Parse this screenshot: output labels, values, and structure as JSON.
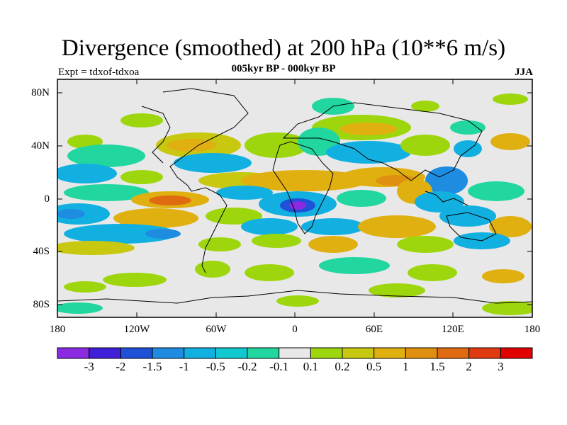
{
  "title": "Divergence (smoothed) at 200 hPa (10**6 m/s)",
  "subtitle": "005kyr BP - 000kyr BP",
  "expt_label": "Expt = tdxof-tdxoa",
  "season": "JJA",
  "latitude_labels": [
    "80N",
    "40N",
    "0",
    "40S",
    "80S"
  ],
  "longitude_labels": [
    "180",
    "120W",
    "60W",
    "0",
    "60E",
    "120E",
    "180"
  ],
  "colorbar": {
    "labels": [
      "-3",
      "-2",
      "-1.5",
      "-1",
      "-0.5",
      "-0.2",
      "-0.1",
      "0.1",
      "0.2",
      "0.5",
      "1",
      "1.5",
      "2",
      "3"
    ],
    "colors": [
      "#8a2be2",
      "#3f1fd8",
      "#1e50d8",
      "#1e8ce0",
      "#12b0e0",
      "#10c8d0",
      "#22d6a0",
      "#e8e8e8",
      "#9ed60e",
      "#c8c810",
      "#e0b010",
      "#e09010",
      "#e06a10",
      "#e03a10",
      "#e00000"
    ]
  },
  "palette": {
    "neutral": "#e8e8e8",
    "coast": "#000000"
  }
}
